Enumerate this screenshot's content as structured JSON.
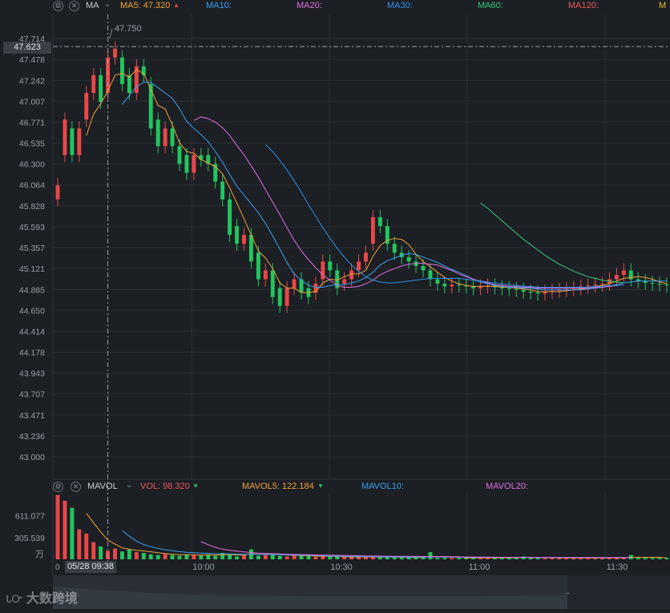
{
  "main_header": {
    "indicator": "MA",
    "ma5": {
      "label": "MA5: 47.320",
      "color": "#f0a33a"
    },
    "ma10": {
      "label": "MA10:",
      "color": "#3aa0f0"
    },
    "ma20": {
      "label": "MA20:",
      "color": "#e070e0"
    },
    "ma30": {
      "label": "MA30:",
      "color": "#2f8fe8"
    },
    "ma60": {
      "label": "MA60:",
      "color": "#37c97d"
    },
    "ma120": {
      "label": "MA120:",
      "color": "#e85a5a"
    },
    "ma_more": {
      "color": "#e8c030"
    }
  },
  "vol_header": {
    "indicator": "MAVOL",
    "vol": {
      "label": "VOL: 98.320",
      "color": "#e85a5a"
    },
    "mavol5": {
      "label": "MAVOL5: 122.184",
      "color": "#f0a33a"
    },
    "mavol10": {
      "label": "MAVOL10:",
      "color": "#3aa0f0"
    },
    "mavol20": {
      "label": "MAVOL20:",
      "color": "#e070e0"
    }
  },
  "crosshair": {
    "price_label": "47.623",
    "time_label": "05/28 09:38"
  },
  "max_label": "47.750",
  "unit_label": "万",
  "volume_zero_label": "0",
  "watermark": "大数跨境",
  "icons": {
    "settings": "gear-icon",
    "close": "close-icon",
    "dropdown": "chevron-down-icon",
    "scroll": "arrow-right-icon"
  },
  "colors": {
    "up": "#e84848",
    "down": "#22c55e",
    "background": "#1c1f24",
    "grid": "#2a2e34"
  },
  "chart_data": [
    {
      "type": "candlestick",
      "title": "",
      "xlabel": "",
      "ylabel": "",
      "x_ticks": [
        "10:00",
        "10:30",
        "11:00",
        "11:30"
      ],
      "y_ticks": [
        "47.714",
        "47.478",
        "47.242",
        "47.007",
        "46.771",
        "46.535",
        "46.300",
        "46.064",
        "45.828",
        "45.593",
        "45.357",
        "45.121",
        "44.885",
        "44.650",
        "44.414",
        "44.178",
        "43.943",
        "43.707",
        "43.471",
        "43.236",
        "43.000"
      ],
      "ylim": [
        43.0,
        47.714
      ],
      "grid": true,
      "series_close": [
        46.06,
        46.8,
        46.4,
        46.7,
        47.1,
        47.3,
        47.0,
        47.5,
        47.6,
        47.2,
        47.1,
        47.4,
        47.3,
        46.7,
        46.5,
        46.7,
        46.5,
        46.3,
        46.2,
        46.4,
        46.35,
        46.3,
        46.1,
        45.9,
        45.5,
        45.4,
        45.5,
        45.2,
        45.0,
        45.1,
        44.8,
        44.7,
        44.9,
        45.0,
        44.85,
        44.8,
        44.95,
        45.2,
        45.1,
        44.9,
        45.0,
        45.1,
        45.2,
        45.3,
        45.7,
        45.6,
        45.4,
        45.3,
        45.25,
        45.2,
        45.15,
        45.1,
        45.0,
        44.95,
        44.92,
        44.94,
        44.93,
        44.92,
        44.9,
        44.92,
        44.93,
        44.91,
        44.9,
        44.89,
        44.88,
        44.86,
        44.85,
        44.84,
        44.86,
        44.87,
        44.88,
        44.89,
        44.9,
        44.92,
        44.93,
        44.94,
        44.95,
        45.0,
        45.05,
        45.1,
        45.0,
        44.98,
        44.96,
        44.95,
        44.94,
        44.93
      ],
      "series_open": [
        45.9,
        46.4,
        46.7,
        46.4,
        46.8,
        47.1,
        47.3,
        47.1,
        47.5,
        47.5,
        47.3,
        47.1,
        47.4,
        47.2,
        46.8,
        46.5,
        46.7,
        46.5,
        46.4,
        46.2,
        46.4,
        46.4,
        46.3,
        46.1,
        45.9,
        45.6,
        45.4,
        45.5,
        45.3,
        45.0,
        45.1,
        44.9,
        44.7,
        44.9,
        45.0,
        44.9,
        44.85,
        45.0,
        45.2,
        45.1,
        44.95,
        45.0,
        45.1,
        45.2,
        45.4,
        45.7,
        45.6,
        45.4,
        45.3,
        45.25,
        45.2,
        45.15,
        45.1,
        45.0,
        44.95,
        44.92,
        44.94,
        44.93,
        44.92,
        44.9,
        44.92,
        44.93,
        44.91,
        44.9,
        44.89,
        44.88,
        44.86,
        44.85,
        44.84,
        44.86,
        44.87,
        44.88,
        44.89,
        44.9,
        44.92,
        44.93,
        44.94,
        44.95,
        45.0,
        45.05,
        45.1,
        45.0,
        44.98,
        44.96,
        44.95,
        44.94
      ],
      "series": [
        {
          "name": "MA5",
          "values": [
            null,
            null,
            null,
            null,
            46.62,
            46.86,
            46.98,
            47.12,
            47.3,
            47.32,
            47.28,
            47.36,
            47.32,
            47.14,
            46.96,
            46.92,
            46.74,
            46.54,
            46.44,
            46.42,
            46.35,
            46.31,
            46.27,
            46.19,
            46.03,
            45.86,
            45.68,
            45.5,
            45.32,
            45.24,
            45.12,
            44.96,
            44.9,
            44.9,
            44.85,
            44.85,
            44.86,
            44.96,
            45.0,
            44.99,
            45.03,
            45.06,
            45.06,
            45.1,
            45.26,
            45.38,
            45.44,
            45.46,
            45.45,
            45.39,
            45.28,
            45.2,
            45.14,
            45.08,
            45.02,
            44.98,
            44.95,
            44.93,
            44.92,
            44.92,
            44.92,
            44.92,
            44.91,
            44.91,
            44.9,
            44.89,
            44.88,
            44.86,
            44.86,
            44.86,
            44.86,
            44.87,
            44.88,
            44.89,
            44.9,
            44.92,
            44.93,
            44.95,
            44.98,
            45.01,
            45.02,
            45.03,
            45.02,
            45.0,
            44.97,
            44.95
          ]
        },
        {
          "name": "MA10",
          "values": [
            null,
            null,
            null,
            null,
            null,
            null,
            null,
            null,
            null,
            46.97,
            47.07,
            47.17,
            47.22,
            47.22,
            47.16,
            47.1,
            47.04,
            46.92,
            46.78,
            46.7,
            46.63,
            46.55,
            46.44,
            46.32,
            46.18,
            46.05,
            45.95,
            45.85,
            45.75,
            45.63,
            45.49,
            45.34,
            45.19,
            45.06,
            44.99,
            44.93,
            44.91,
            44.91,
            44.93,
            44.94,
            44.94,
            44.96,
            44.98,
            45.02,
            45.08,
            45.16,
            45.21,
            45.24,
            45.27,
            45.29,
            45.28,
            45.25,
            45.22,
            45.19,
            45.15,
            45.11,
            45.08,
            45.04,
            45.0,
            44.97,
            44.95,
            44.93,
            44.92,
            44.91,
            44.91,
            44.9,
            44.9,
            44.89,
            44.88,
            44.88,
            44.88,
            44.88,
            44.88,
            44.88,
            44.89,
            44.9,
            44.91,
            44.92,
            44.94,
            44.96,
            44.97,
            44.98,
            44.98,
            44.98,
            44.98,
            44.98
          ]
        },
        {
          "name": "MA20",
          "values": [
            null,
            null,
            null,
            null,
            null,
            null,
            null,
            null,
            null,
            null,
            null,
            null,
            null,
            null,
            null,
            null,
            null,
            null,
            null,
            46.79,
            46.83,
            46.81,
            46.77,
            46.71,
            46.62,
            46.51,
            46.4,
            46.28,
            46.15,
            46.01,
            45.87,
            45.73,
            45.58,
            45.44,
            45.32,
            45.22,
            45.13,
            45.05,
            44.99,
            44.93,
            44.91,
            44.91,
            44.92,
            44.95,
            44.99,
            45.05,
            45.09,
            45.12,
            45.15,
            45.17,
            45.18,
            45.18,
            45.17,
            45.16,
            45.13,
            45.1,
            45.06,
            45.03,
            45.0,
            44.98,
            44.96,
            44.94,
            44.93,
            44.92,
            44.92,
            44.91,
            44.91,
            44.9,
            44.9,
            44.9,
            44.9,
            44.9,
            44.9,
            44.9,
            44.9,
            44.91,
            44.91,
            44.92,
            44.93,
            44.94
          ]
        },
        {
          "name": "MA30",
          "values": [
            null,
            null,
            null,
            null,
            null,
            null,
            null,
            null,
            null,
            null,
            null,
            null,
            null,
            null,
            null,
            null,
            null,
            null,
            null,
            null,
            null,
            null,
            null,
            null,
            null,
            null,
            null,
            null,
            null,
            46.52,
            46.44,
            46.34,
            46.23,
            46.11,
            45.98,
            45.84,
            45.71,
            45.58,
            45.46,
            45.35,
            45.25,
            45.16,
            45.09,
            45.03,
            44.99,
            44.97,
            44.96,
            44.96,
            44.97,
            44.98,
            44.99,
            45.0,
            45.01,
            45.01,
            45.01,
            45.01,
            45.01,
            45.0,
            44.99,
            44.98,
            44.97,
            44.96,
            44.95,
            44.94,
            44.93,
            44.92,
            44.92,
            44.91,
            44.91,
            44.91,
            44.91,
            44.91,
            44.91,
            44.91,
            44.91,
            44.92,
            44.92,
            44.93,
            44.93,
            44.94
          ]
        },
        {
          "name": "MA60",
          "values": [
            null,
            null,
            null,
            null,
            null,
            null,
            null,
            null,
            null,
            null,
            null,
            null,
            null,
            null,
            null,
            null,
            null,
            null,
            null,
            null,
            null,
            null,
            null,
            null,
            null,
            null,
            null,
            null,
            null,
            null,
            null,
            null,
            null,
            null,
            null,
            null,
            null,
            null,
            null,
            null,
            null,
            null,
            null,
            null,
            null,
            null,
            null,
            null,
            null,
            null,
            null,
            null,
            null,
            null,
            null,
            null,
            null,
            null,
            null,
            45.86,
            45.8,
            45.73,
            45.66,
            45.59,
            45.52,
            45.45,
            45.39,
            45.33,
            45.27,
            45.22,
            45.17,
            45.13,
            45.09,
            45.06,
            45.03,
            45.01,
            44.99,
            44.98,
            44.97,
            44.96
          ]
        }
      ]
    },
    {
      "type": "bar",
      "title": "",
      "y_ticks": [
        "611.077",
        "305.539"
      ],
      "unit": "万",
      "ylim": [
        0,
        920
      ],
      "values": [
        900,
        820,
        720,
        420,
        360,
        240,
        180,
        120,
        150,
        110,
        140,
        100,
        90,
        70,
        60,
        80,
        60,
        50,
        70,
        60,
        55,
        70,
        50,
        90,
        60,
        40,
        60,
        140,
        50,
        60,
        70,
        50,
        40,
        60,
        50,
        45,
        40,
        40,
        40,
        35,
        35,
        30,
        30,
        40,
        35,
        30,
        30,
        30,
        25,
        25,
        25,
        25,
        100,
        20,
        20,
        20,
        20,
        20,
        20,
        20,
        20,
        25,
        20,
        20,
        20,
        40,
        20,
        20,
        20,
        20,
        20,
        20,
        20,
        20,
        20,
        20,
        20,
        20,
        20,
        20,
        60,
        20,
        20,
        20,
        20,
        20
      ],
      "series": [
        {
          "name": "MAVOL5",
          "values": [
            null,
            null,
            null,
            null,
            644,
            512,
            384,
            268,
            214,
            160,
            140,
            124,
            118,
            106,
            92,
            80,
            72,
            64,
            64,
            64,
            59,
            61,
            61,
            65,
            65,
            62,
            60,
            78,
            70,
            70,
            76,
            74,
            62,
            56,
            54,
            49,
            47,
            43,
            41,
            38,
            36,
            34,
            32,
            33,
            34,
            33,
            32,
            31,
            29,
            27,
            26,
            26,
            40,
            39,
            38,
            37,
            36,
            20,
            20,
            20,
            21,
            21,
            21,
            21,
            21,
            25,
            24,
            24,
            24,
            24,
            20,
            20,
            20,
            20,
            20,
            20,
            20,
            20,
            20,
            20,
            28,
            28,
            28,
            28,
            28,
            20
          ]
        },
        {
          "name": "MAVOL10",
          "values": [
            null,
            null,
            null,
            null,
            null,
            null,
            null,
            null,
            null,
            402,
            322,
            254,
            206,
            177,
            153,
            134,
            121,
            108,
            99,
            92,
            87,
            83,
            79,
            77,
            75,
            72,
            69,
            72,
            69,
            67,
            67,
            64,
            61,
            60,
            58,
            56,
            54,
            50,
            46,
            44,
            42,
            40,
            38,
            37,
            36,
            35,
            34,
            33,
            32,
            31,
            31,
            30,
            33,
            32,
            31,
            30,
            29,
            28,
            27,
            27,
            27,
            27,
            27,
            27,
            27,
            27,
            27,
            25,
            25,
            25,
            24,
            24,
            24,
            24,
            24,
            24,
            22,
            22,
            22,
            22,
            24
          ]
        },
        {
          "name": "MAVOL20",
          "values": [
            null,
            null,
            null,
            null,
            null,
            null,
            null,
            null,
            null,
            null,
            null,
            null,
            null,
            null,
            null,
            null,
            null,
            null,
            null,
            null,
            247,
            204,
            167,
            142,
            126,
            114,
            103,
            95,
            88,
            83,
            78,
            74,
            71,
            68,
            66,
            64,
            61,
            60,
            58,
            56,
            54,
            52,
            50,
            48,
            46,
            45,
            44,
            43,
            42,
            41,
            40,
            39,
            38,
            37,
            36,
            35,
            34,
            33,
            32,
            31,
            30,
            29,
            28,
            28,
            27,
            27,
            26,
            26,
            26,
            26,
            26,
            26,
            25,
            25,
            25,
            25,
            25,
            25,
            25,
            25,
            25
          ]
        }
      ]
    }
  ]
}
